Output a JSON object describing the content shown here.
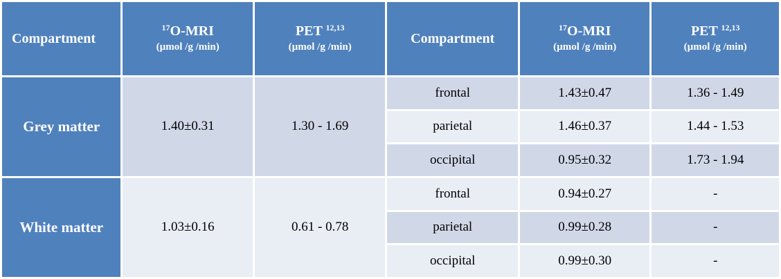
{
  "headers": {
    "compartment": "Compartment",
    "mri_main_sup": "17",
    "mri_main": "O-MRI",
    "mri_unit": "(µmol /g /min)",
    "pet_main": "PET",
    "pet_sup": "12,13",
    "pet_unit": "(µmol /g /min)"
  },
  "groups": [
    {
      "label": "Grey matter",
      "mri": "1.40±0.31",
      "pet": "1.30 - 1.69",
      "regions": [
        {
          "name": "frontal",
          "mri": "1.43±0.47",
          "pet": "1.36 - 1.49"
        },
        {
          "name": "parietal",
          "mri": "1.46±0.37",
          "pet": "1.44 - 1.53"
        },
        {
          "name": "occipital",
          "mri": "0.95±0.32",
          "pet": "1.73 - 1.94"
        }
      ]
    },
    {
      "label": "White matter",
      "mri": "1.03±0.16",
      "pet": "0.61 - 0.78",
      "regions": [
        {
          "name": "frontal",
          "mri": "0.94±0.27",
          "pet": "-"
        },
        {
          "name": "parietal",
          "mri": "0.99±0.28",
          "pet": "-"
        },
        {
          "name": "occipital",
          "mri": "0.99±0.30",
          "pet": "-"
        }
      ]
    }
  ]
}
